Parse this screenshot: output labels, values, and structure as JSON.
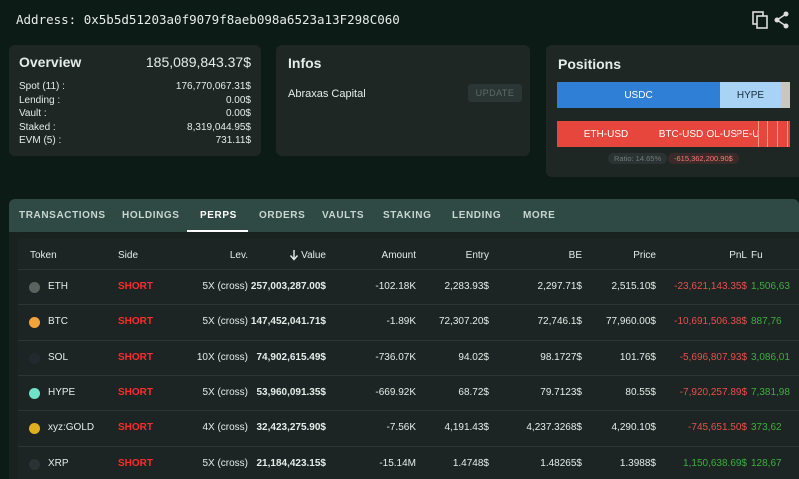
{
  "address": "Address: 0x5b5d51203a0f9079f8aeb098a6523a13F298C060",
  "overview": {
    "title": "Overview",
    "total": "185,089,843.37$",
    "rows": [
      {
        "label": "Spot (11) :",
        "value": "176,770,067.31$"
      },
      {
        "label": "Lending :",
        "value": "0.00$"
      },
      {
        "label": "Vault :",
        "value": "0.00$"
      },
      {
        "label": "Staked :",
        "value": "8,319,044.95$"
      },
      {
        "label": "EVM (5) :",
        "value": "731.11$"
      }
    ]
  },
  "infos": {
    "title": "Infos",
    "name": "Abraxas Capital",
    "button": "UPDATE"
  },
  "positions": {
    "title": "Positions",
    "spot_segments": [
      "USDC",
      "HYPE"
    ],
    "perp_segments": [
      "ETH-USD",
      "BTC-USD",
      "SOL-USD",
      "HYPE-USD"
    ],
    "ratio": "Ratio: 14.65%",
    "total": "-615,362,200.90$"
  },
  "tabs": [
    "TRANSACTIONS",
    "HOLDINGS",
    "PERPS",
    "ORDERS",
    "VAULTS",
    "STAKING",
    "LENDING",
    "MORE"
  ],
  "active_tab": 2,
  "table": {
    "columns": [
      "Token",
      "Side",
      "Lev.",
      "Value",
      "Amount",
      "Entry",
      "BE",
      "Price",
      "PnL",
      "Fu"
    ],
    "rows": [
      [
        "ETH",
        "SHORT",
        "5X (cross)",
        "257,003,287.00$",
        "-102.18K",
        "2,283.93$",
        "2,297.71$",
        "2,515.10$",
        "-23,621,143.35$",
        "1,506,63"
      ],
      [
        "BTC",
        "SHORT",
        "5X (cross)",
        "147,452,041.71$",
        "-1.89K",
        "72,307.20$",
        "72,746.1$",
        "77,960.00$",
        "-10,691,506.38$",
        "887,76"
      ],
      [
        "SOL",
        "SHORT",
        "10X (cross)",
        "74,902,615.49$",
        "-736.07K",
        "94.02$",
        "98.1727$",
        "101.76$",
        "-5,696,807.93$",
        "3,086,01"
      ],
      [
        "HYPE",
        "SHORT",
        "5X (cross)",
        "53,960,091.35$",
        "-669.92K",
        "68.72$",
        "79.7123$",
        "80.55$",
        "-7,920,257.89$",
        "7,381,98"
      ],
      [
        "xyz:GOLD",
        "SHORT",
        "4X (cross)",
        "32,423,275.90$",
        "-7.56K",
        "4,191.43$",
        "4,237.3268$",
        "4,290.10$",
        "-745,651.50$",
        "373,62"
      ],
      [
        "XRP",
        "SHORT",
        "5X (cross)",
        "21,184,423.15$",
        "-15.14M",
        "1.4748$",
        "1.48265$",
        "1.3988$",
        "1,150,638.69$",
        "128,67"
      ]
    ]
  }
}
